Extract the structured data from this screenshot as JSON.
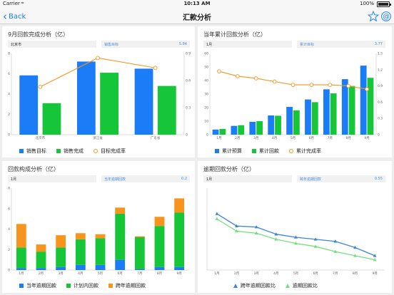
{
  "status": {
    "carrier": "Carrier",
    "time": "10:13 AM",
    "battery": "100%"
  },
  "nav": {
    "back": "Back",
    "title": "汇款分析"
  },
  "colors": {
    "blue": "#1a7cf7",
    "green": "#14c638",
    "orange": "#f7941d",
    "line_blue": "#3b87d1",
    "line_green": "#73e07a"
  },
  "panels": [
    {
      "title": "9月回款完成分析（亿）",
      "bar_left": "北京市",
      "bar_right_label": "销售目标",
      "bar_right_value": "5.84",
      "legend": [
        "销售目标",
        "销售完成",
        "目标完成率"
      ]
    },
    {
      "title": "当年累计回款分析（亿）",
      "bar_left": "1月",
      "bar_right_label": "累计目标",
      "bar_right_value": "3.77",
      "legend": [
        "累计预算",
        "累计回款",
        "累计完成率"
      ]
    },
    {
      "title": "回款构成分析（亿）",
      "bar_left": "1月",
      "bar_right_label": "当年逾期回款",
      "bar_right_value": "0.2",
      "legend": [
        "当年逾期回款",
        "计划内回款",
        "跨年逾期回款"
      ]
    },
    {
      "title": "逾期回款分析（亿）",
      "bar_left": "1月",
      "bar_right_label": "跨年逾期回款",
      "bar_right_value": "0.55",
      "legend": [
        "跨年逾期回款比",
        "逾期回款比"
      ]
    }
  ],
  "chart_data": [
    {
      "type": "bar",
      "categories": [
        "北京市",
        "浙江省",
        "广东省"
      ],
      "series": [
        {
          "name": "销售目标",
          "values": [
            5.84,
            7.2,
            6.5
          ]
        },
        {
          "name": "销售完成",
          "values": [
            3.1,
            6.1,
            4.8
          ]
        },
        {
          "name": "目标完成率",
          "values": [
            0.53,
            0.85,
            0.74
          ]
        }
      ],
      "ylim": [
        0,
        8
      ],
      "y_ticks": [
        "0",
        "2",
        "4",
        "6",
        "8"
      ],
      "y2lim": [
        0,
        0.9
      ],
      "y2_ticks": [
        "0",
        "0.3",
        "0.6",
        "0.9"
      ]
    },
    {
      "type": "bar",
      "categories": [
        "1月",
        "2月",
        "3月",
        "4月",
        "5月",
        "6月",
        "7月",
        "8月",
        "9月"
      ],
      "series": [
        {
          "name": "累计预算",
          "values": [
            3.77,
            6.5,
            9.5,
            14.2,
            20.5,
            26,
            33.5,
            41,
            51
          ]
        },
        {
          "name": "累计回款",
          "values": [
            4.2,
            7,
            10,
            14,
            18,
            24,
            30.5,
            36,
            42
          ]
        },
        {
          "name": "累计完成率",
          "values": [
            1.17,
            1.08,
            1.04,
            0.98,
            0.92,
            0.92,
            0.92,
            0.9,
            0.84
          ]
        }
      ],
      "ylim": [
        0,
        60
      ],
      "y_ticks": [
        "0",
        "10",
        "20",
        "30",
        "40",
        "50",
        "60"
      ],
      "y2lim": [
        0,
        1.5
      ],
      "y2_ticks": [
        "0",
        "0.3",
        "0.6",
        "0.9",
        "1.2",
        "1.5"
      ]
    },
    {
      "type": "bar",
      "stacked": true,
      "categories": [
        "1月",
        "2月",
        "3月",
        "4月",
        "5月",
        "6月",
        "7月",
        "8月",
        "9月"
      ],
      "series": [
        {
          "name": "当年逾期回款",
          "values": [
            0.2,
            0.2,
            0.3,
            0.5,
            0.5,
            1,
            0.1,
            0.3,
            0.3
          ]
        },
        {
          "name": "计划内回款",
          "values": [
            2,
            1.6,
            1.9,
            2.5,
            2.6,
            4.5,
            3.1,
            4,
            5.3
          ]
        },
        {
          "name": "跨年逾期回款",
          "values": [
            2.3,
            0.7,
            1.2,
            0.6,
            0.4,
            0.6,
            0.1,
            0.9,
            1.4
          ]
        }
      ],
      "ylim": [
        0,
        8
      ],
      "y_ticks": [
        "0",
        "2",
        "4",
        "6",
        "8"
      ]
    },
    {
      "type": "line",
      "categories": [
        "1月",
        "2月",
        "3月",
        "4月",
        "5月",
        "6月",
        "7月",
        "8月",
        "9月"
      ],
      "series": [
        {
          "name": "跨年逾期回款比",
          "values": [
            0.55,
            0.43,
            0.42,
            0.35,
            0.32,
            0.3,
            0.28,
            0.22,
            0.14
          ]
        },
        {
          "name": "逾期回款比",
          "values": [
            0.5,
            0.38,
            0.36,
            0.3,
            0.26,
            0.23,
            0.18,
            0.14,
            0.1
          ]
        }
      ],
      "ylim": [
        0,
        0.8
      ]
    }
  ]
}
